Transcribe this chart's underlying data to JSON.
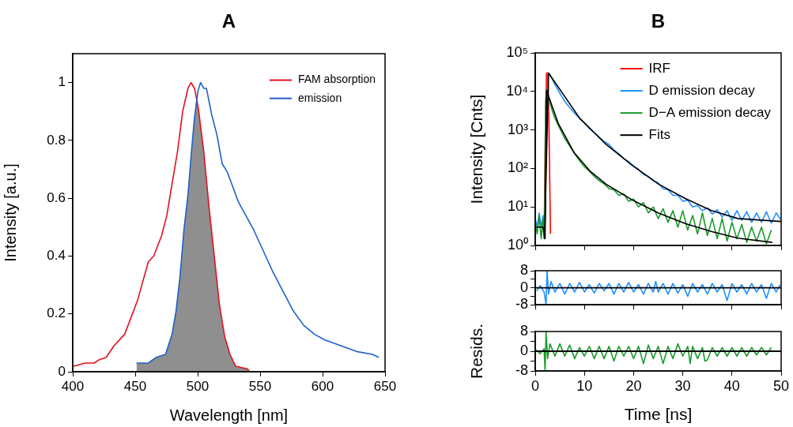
{
  "chart_data": [
    {
      "type": "line",
      "title": "A",
      "xlabel": "Wavelength [nm]",
      "ylabel": "Intensity [a.u.]",
      "xlim": [
        400,
        650
      ],
      "xticks": [
        400,
        450,
        500,
        550,
        600,
        650
      ],
      "ylim": [
        0,
        1.1
      ],
      "yticks": [
        0,
        0.2,
        0.4,
        0.6,
        0.8,
        1
      ],
      "legend": "top right",
      "series": [
        {
          "type": "area",
          "color": "#000000",
          "x": [
            451,
            460,
            467,
            474,
            479.5,
            482.7,
            485.9,
            489,
            492.2,
            495.4,
            497.5,
            499,
            500.6,
            504.9,
            509.1,
            513.3,
            517.5,
            521.7,
            525.9,
            530.2,
            534.4,
            539.7,
            541.8
          ],
          "values": [
            0.03,
            0.03,
            0.05,
            0.06,
            0.13,
            0.21,
            0.33,
            0.49,
            0.61,
            0.78,
            0.88,
            0.94,
            0.91,
            0.76,
            0.57,
            0.4,
            0.23,
            0.12,
            0.06,
            0.02,
            0.015,
            0.01,
            0
          ]
        },
        {
          "name": "FAM absorption",
          "color": "#e3101e",
          "x": [
            400,
            401.5,
            409.9,
            417.3,
            420.5,
            426.8,
            433.1,
            441.6,
            452.1,
            460.5,
            464.8,
            471.1,
            475.3,
            479.5,
            483.8,
            488,
            492.2,
            494.7,
            497.5,
            500.6,
            504.9,
            509.1,
            513.3,
            517.5,
            521.7,
            525.9,
            530.2,
            534.4,
            539.7,
            541.8
          ],
          "values": [
            0.02,
            0.02,
            0.03,
            0.03,
            0.04,
            0.05,
            0.09,
            0.13,
            0.25,
            0.38,
            0.4,
            0.47,
            0.54,
            0.65,
            0.76,
            0.9,
            0.98,
            1,
            0.98,
            0.91,
            0.76,
            0.57,
            0.4,
            0.23,
            0.12,
            0.06,
            0.02,
            0.015,
            0.01,
            0
          ]
        },
        {
          "name": "emission",
          "color": "#1f5fc8",
          "x": [
            451.1,
            460.5,
            466.9,
            474.3,
            479.5,
            482.7,
            485.9,
            489,
            492.2,
            495.4,
            497.5,
            500.2,
            502.3,
            504.9,
            507,
            511.2,
            515.4,
            519.6,
            523.8,
            528.1,
            532.3,
            538.6,
            544.9,
            551.3,
            559.7,
            568.1,
            576.6,
            585,
            593.4,
            601.9,
            614.6,
            627.2,
            639.9,
            645
          ],
          "values": [
            0.03,
            0.03,
            0.05,
            0.06,
            0.13,
            0.21,
            0.33,
            0.49,
            0.61,
            0.78,
            0.88,
            0.97,
            1,
            0.98,
            0.98,
            0.89,
            0.82,
            0.72,
            0.69,
            0.64,
            0.59,
            0.54,
            0.49,
            0.43,
            0.35,
            0.28,
            0.21,
            0.16,
            0.13,
            0.11,
            0.09,
            0.07,
            0.06,
            0.05
          ]
        }
      ]
    },
    {
      "type": "line",
      "title": "B",
      "ylabel": "Intensity [Cnts]",
      "xlim": [
        0,
        50
      ],
      "xticks": [
        0,
        10,
        20,
        30,
        40,
        50
      ],
      "log": "y",
      "ylim": [
        1,
        100000
      ],
      "yticks": [
        {
          "value": 1,
          "label": "10⁰"
        },
        {
          "value": 10,
          "label": "10¹"
        },
        {
          "value": 100,
          "label": "10²"
        },
        {
          "value": 1000,
          "label": "10³"
        },
        {
          "value": 10000,
          "label": "10⁴"
        },
        {
          "value": 100000,
          "label": "10⁵"
        }
      ],
      "tick_labels": "y",
      "legend": "top right",
      "series": [
        {
          "name": "IRF",
          "color": "#ff0000",
          "x": [
            1.8,
            2.1,
            2.3,
            2.6,
            2.8,
            3.1
          ],
          "values": [
            1.5,
            3000,
            30000,
            30000,
            1000,
            2
          ]
        },
        {
          "name": "D emission decay",
          "color": "#1e90ff",
          "x": [
            0,
            0.4,
            0.8,
            1.2,
            1.6,
            1.9,
            2.2,
            2.6,
            3,
            4,
            5,
            6,
            7,
            8,
            9,
            10,
            11,
            12,
            13,
            14,
            15,
            16,
            17,
            18,
            19,
            20,
            21,
            22,
            23,
            24,
            25,
            26,
            27,
            28,
            29,
            30,
            31,
            32,
            33,
            34,
            35,
            36,
            37,
            38,
            39,
            40,
            41,
            42,
            43,
            44,
            45,
            46,
            47,
            48,
            49,
            50
          ],
          "values": [
            5,
            3,
            7,
            3,
            6,
            3,
            null,
            30000,
            27000,
            15000,
            9000,
            5500,
            3800,
            2700,
            2000,
            1500,
            1100,
            850,
            650,
            500,
            420,
            300,
            240,
            180,
            150,
            115,
            95,
            70,
            62,
            48,
            42,
            30,
            28,
            20,
            20,
            14,
            15,
            10,
            11,
            8,
            9.5,
            6.5,
            8.5,
            5.5,
            8,
            4.5,
            8,
            4.5,
            7.5,
            4,
            7,
            4,
            7.5,
            3.8,
            7,
            4.5
          ]
        },
        {
          "name": "D−A emission decay",
          "color": "#1a9a2a",
          "x": [
            0,
            0.4,
            0.8,
            1.2,
            1.6,
            1.9,
            2.1,
            2.3,
            2.6,
            3,
            3.5,
            4,
            5,
            6,
            7,
            8,
            9,
            10,
            11,
            12,
            13,
            14,
            15,
            16,
            17,
            18,
            19,
            20,
            21,
            22,
            23,
            24,
            25,
            26,
            27,
            28,
            29,
            30,
            31,
            32,
            33,
            34,
            35,
            36,
            37,
            38,
            39,
            40,
            41,
            42,
            43,
            44,
            45,
            46,
            47,
            48
          ],
          "values": [
            4,
            2,
            6,
            1.5,
            5,
            2,
            5000,
            11000,
            8000,
            5000,
            3000,
            2000,
            1100,
            600,
            380,
            240,
            160,
            110,
            85,
            62,
            48,
            40,
            30,
            28,
            20,
            22,
            14,
            16,
            10,
            13,
            7,
            10,
            5,
            9,
            4,
            8,
            3,
            8,
            2.5,
            6,
            2,
            7,
            1.8,
            5,
            1.5,
            5,
            1.3,
            4,
            1.5,
            3.5,
            1.2,
            3,
            1.3,
            3,
            1.1,
            2.5
          ]
        },
        {
          "name": "Fits",
          "color": "#000000",
          "x": [
            0.2,
            1.6,
            1.9,
            2.7,
            9.05,
            14.4,
            19.8,
            25.1,
            30.5,
            35.8,
            41.2,
            50
          ],
          "values": [
            3,
            3,
            1.5,
            30000,
            2000,
            420,
            118,
            39,
            16.6,
            8.1,
            5,
            4.2
          ]
        },
        {
          "color": "#000000",
          "x": [
            2,
            2.3,
            4.7,
            7.9,
            11.1,
            14.4,
            19.8,
            25.1,
            30.5,
            35.8,
            41.2,
            48.2
          ],
          "values": [
            1.5,
            10500,
            1450,
            258,
            86,
            39,
            15,
            6.9,
            3.7,
            2.3,
            1.55,
            1.2
          ]
        }
      ]
    },
    {
      "type": "line",
      "xlim": [
        0,
        50
      ],
      "xticks": [
        0,
        10,
        20,
        30,
        40,
        50
      ],
      "ylim": [
        -8,
        8
      ],
      "yticks": [
        -8,
        {
          "value": -4,
          "label": null
        },
        0,
        {
          "value": 4,
          "label": null
        },
        8
      ],
      "tick_labels": "y",
      "ref_lines": [
        {
          "axis": "y",
          "value": 0,
          "color": "#000000"
        }
      ],
      "series": [
        {
          "color": "#1e90ff",
          "x": [
            0.3,
            1,
            1.8,
            2.2,
            2.4,
            2.7,
            3.2,
            4,
            5,
            6,
            7,
            8,
            9,
            10,
            11,
            12,
            13,
            14,
            15,
            16,
            17,
            18,
            19,
            20,
            21,
            22,
            23,
            24,
            24.5,
            25,
            26,
            27,
            28,
            29,
            30,
            31,
            32,
            33,
            34,
            35,
            36,
            37,
            38,
            39,
            40,
            41,
            42,
            43,
            44,
            45,
            46,
            47,
            48,
            49,
            49.8
          ],
          "values": [
            -1.5,
            1,
            -2,
            -8,
            8,
            -3,
            3,
            -2,
            2,
            -3,
            2,
            -2,
            2.5,
            -2,
            1.5,
            -2.5,
            2,
            -1.5,
            2,
            -3,
            2,
            -2,
            2.5,
            -2,
            1.5,
            -3,
            2,
            -2,
            3,
            -2,
            2,
            -3,
            2,
            -2.5,
            1.5,
            -4,
            2,
            -2,
            1.5,
            -3,
            2,
            -2,
            1.5,
            -6,
            2,
            -2,
            1.5,
            -3,
            2,
            -2,
            1.5,
            -5,
            2,
            -2,
            1.5
          ]
        }
      ]
    },
    {
      "type": "line",
      "xlabel": "Time [ns]",
      "ylabel": "Resids.",
      "xlim": [
        0,
        50
      ],
      "xticks": [
        0,
        10,
        20,
        30,
        40,
        50
      ],
      "ylim": [
        -8,
        8
      ],
      "yticks": [
        -8,
        {
          "value": -4,
          "label": null
        },
        0,
        {
          "value": 4,
          "label": null
        },
        8
      ],
      "ref_lines": [
        {
          "axis": "y",
          "value": 0,
          "color": "#000000"
        }
      ],
      "series": [
        {
          "color": "#1a9a2a",
          "x": [
            0.2,
            1,
            1.8,
            2,
            2.2,
            2.5,
            3,
            4,
            5,
            6,
            7,
            8,
            9,
            10,
            11,
            12,
            13,
            14,
            15,
            16,
            17,
            18,
            19,
            20,
            21,
            22,
            23,
            24,
            25,
            26,
            27,
            28,
            29,
            30,
            31,
            31.5,
            32,
            33,
            34,
            34.5,
            35,
            36,
            37,
            38,
            39,
            40,
            41,
            42,
            43,
            44,
            45,
            46,
            47,
            48
          ],
          "values": [
            0.5,
            -1,
            1,
            -8,
            8,
            -3,
            3,
            -2,
            3,
            -2,
            2.5,
            -3,
            1.5,
            -2,
            2,
            -3,
            2,
            -3,
            2,
            -4,
            2,
            -2,
            2,
            -3,
            2,
            -5,
            2.5,
            -3,
            2,
            -5,
            2,
            -3,
            3,
            -2,
            2,
            -5,
            2,
            -3,
            1.5,
            -4,
            -3.5,
            1.5,
            -2,
            1.5,
            -2,
            1.5,
            -2,
            1.5,
            -2,
            1.5,
            -1.5,
            1.5,
            -1.5,
            1.5
          ]
        }
      ]
    }
  ]
}
